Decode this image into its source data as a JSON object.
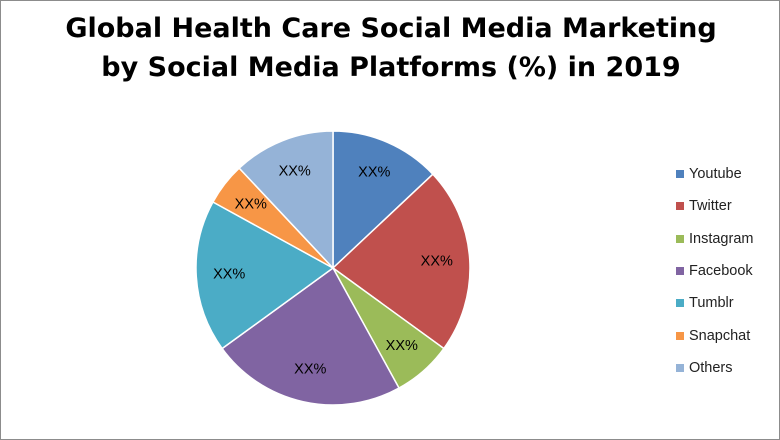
{
  "chart_data": {
    "type": "pie",
    "title_lines": [
      "Global Health Care Social Media Marketing",
      "by Social Media Platforms (%) in 2019"
    ],
    "slices": [
      {
        "label": "Youtube",
        "value": 13,
        "data_label": "XX%",
        "color": "#4F81BD"
      },
      {
        "label": "Twitter",
        "value": 22,
        "data_label": "XX%",
        "color": "#C0504D"
      },
      {
        "label": "Instagram",
        "value": 7,
        "data_label": "XX%",
        "color": "#9BBB59"
      },
      {
        "label": "Facebook",
        "value": 23,
        "data_label": "XX%",
        "color": "#8064A2"
      },
      {
        "label": "Tumblr",
        "value": 18,
        "data_label": "XX%",
        "color": "#4BACC6"
      },
      {
        "label": "Snapchat",
        "value": 5,
        "data_label": "XX%",
        "color": "#F79646"
      },
      {
        "label": "Others",
        "value": 12,
        "data_label": "XX%",
        "color": "#95B3D7"
      }
    ],
    "legend_position": "right"
  }
}
